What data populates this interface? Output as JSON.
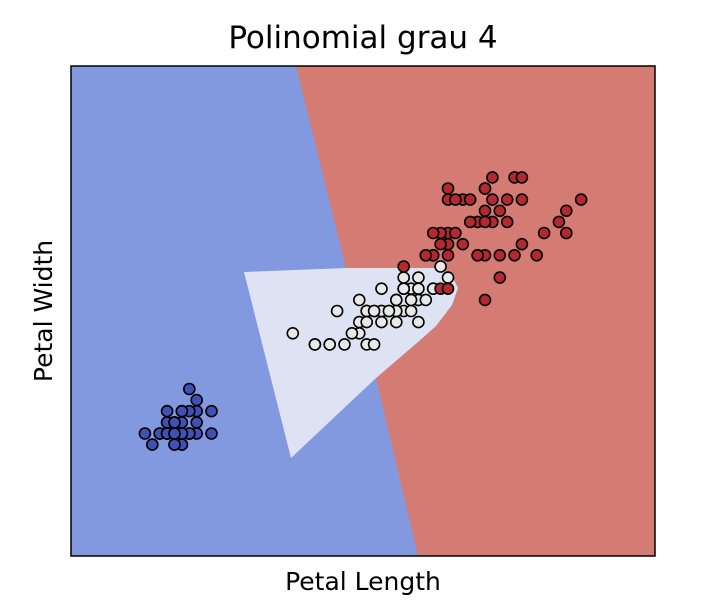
{
  "chart_data": {
    "type": "scatter",
    "title": "Polinomial grau 4",
    "xlabel": "Petal Length",
    "ylabel": "Petal Width",
    "xticks": false,
    "yticks": false,
    "xlim": [
      0.0,
      7.9
    ],
    "ylim": [
      -0.9,
      3.5
    ],
    "grid": false,
    "legend": "none",
    "decision_regions": [
      {
        "class": "0",
        "color": "#8299E0"
      },
      {
        "class": "1",
        "color": "#DDE3F2"
      },
      {
        "class": "2",
        "color": "#D47C74"
      }
    ],
    "series": [
      {
        "class": "0",
        "color": "#3F51B5",
        "points": [
          [
            1.4,
            0.2
          ],
          [
            1.4,
            0.2
          ],
          [
            1.3,
            0.2
          ],
          [
            1.5,
            0.2
          ],
          [
            1.4,
            0.2
          ],
          [
            1.7,
            0.4
          ],
          [
            1.4,
            0.3
          ],
          [
            1.5,
            0.2
          ],
          [
            1.4,
            0.2
          ],
          [
            1.5,
            0.1
          ],
          [
            1.5,
            0.2
          ],
          [
            1.6,
            0.2
          ],
          [
            1.4,
            0.1
          ],
          [
            1.1,
            0.1
          ],
          [
            1.2,
            0.2
          ],
          [
            1.5,
            0.4
          ],
          [
            1.3,
            0.4
          ],
          [
            1.4,
            0.3
          ],
          [
            1.7,
            0.3
          ],
          [
            1.5,
            0.3
          ],
          [
            1.7,
            0.2
          ],
          [
            1.5,
            0.4
          ],
          [
            1.0,
            0.2
          ],
          [
            1.7,
            0.5
          ],
          [
            1.9,
            0.2
          ],
          [
            1.6,
            0.2
          ],
          [
            1.6,
            0.4
          ],
          [
            1.5,
            0.2
          ],
          [
            1.4,
            0.2
          ],
          [
            1.6,
            0.2
          ],
          [
            1.6,
            0.2
          ],
          [
            1.5,
            0.4
          ],
          [
            1.5,
            0.1
          ],
          [
            1.4,
            0.2
          ],
          [
            1.5,
            0.2
          ],
          [
            1.2,
            0.2
          ],
          [
            1.3,
            0.2
          ],
          [
            1.4,
            0.1
          ],
          [
            1.3,
            0.2
          ],
          [
            1.5,
            0.2
          ],
          [
            1.3,
            0.3
          ],
          [
            1.3,
            0.3
          ],
          [
            1.3,
            0.2
          ],
          [
            1.6,
            0.6
          ],
          [
            1.9,
            0.4
          ],
          [
            1.4,
            0.3
          ],
          [
            1.6,
            0.2
          ],
          [
            1.4,
            0.2
          ],
          [
            1.5,
            0.2
          ],
          [
            1.4,
            0.2
          ]
        ]
      },
      {
        "class": "1",
        "color": "#E8E8E8",
        "points": [
          [
            4.7,
            1.4
          ],
          [
            4.5,
            1.5
          ],
          [
            4.9,
            1.5
          ],
          [
            4.0,
            1.3
          ],
          [
            4.6,
            1.5
          ],
          [
            4.5,
            1.3
          ],
          [
            4.7,
            1.6
          ],
          [
            3.3,
            1.0
          ],
          [
            4.6,
            1.3
          ],
          [
            3.9,
            1.4
          ],
          [
            3.5,
            1.0
          ],
          [
            4.2,
            1.5
          ],
          [
            4.0,
            1.0
          ],
          [
            4.7,
            1.4
          ],
          [
            3.6,
            1.3
          ],
          [
            4.4,
            1.4
          ],
          [
            4.5,
            1.5
          ],
          [
            4.1,
            1.0
          ],
          [
            4.5,
            1.5
          ],
          [
            3.9,
            1.1
          ],
          [
            4.8,
            1.8
          ],
          [
            4.0,
            1.3
          ],
          [
            4.9,
            1.5
          ],
          [
            4.7,
            1.2
          ],
          [
            4.3,
            1.3
          ],
          [
            4.4,
            1.4
          ],
          [
            4.8,
            1.4
          ],
          [
            5.0,
            1.7
          ],
          [
            4.5,
            1.5
          ],
          [
            3.5,
            1.0
          ],
          [
            3.8,
            1.1
          ],
          [
            3.7,
            1.0
          ],
          [
            3.9,
            1.2
          ],
          [
            5.1,
            1.6
          ],
          [
            4.5,
            1.5
          ],
          [
            4.5,
            1.6
          ],
          [
            4.7,
            1.5
          ],
          [
            4.4,
            1.3
          ],
          [
            4.1,
            1.3
          ],
          [
            4.0,
            1.3
          ],
          [
            4.4,
            1.2
          ],
          [
            4.6,
            1.4
          ],
          [
            4.0,
            1.2
          ],
          [
            3.3,
            1.0
          ],
          [
            4.2,
            1.3
          ],
          [
            4.2,
            1.2
          ],
          [
            4.2,
            1.3
          ],
          [
            4.3,
            1.3
          ],
          [
            3.0,
            1.1
          ],
          [
            4.1,
            1.3
          ]
        ]
      },
      {
        "class": "2",
        "color": "#B22A2E",
        "points": [
          [
            6.0,
            2.5
          ],
          [
            5.1,
            1.9
          ],
          [
            5.9,
            2.1
          ],
          [
            5.6,
            1.8
          ],
          [
            5.8,
            2.2
          ],
          [
            6.6,
            2.1
          ],
          [
            4.5,
            1.7
          ],
          [
            6.3,
            1.8
          ],
          [
            5.8,
            1.8
          ],
          [
            6.1,
            2.5
          ],
          [
            5.1,
            2.0
          ],
          [
            5.3,
            1.9
          ],
          [
            5.5,
            2.1
          ],
          [
            5.0,
            2.0
          ],
          [
            5.1,
            2.4
          ],
          [
            5.3,
            2.3
          ],
          [
            5.5,
            1.8
          ],
          [
            6.7,
            2.2
          ],
          [
            6.9,
            2.3
          ],
          [
            5.0,
            1.5
          ],
          [
            5.7,
            2.3
          ],
          [
            4.9,
            2.0
          ],
          [
            6.7,
            2.0
          ],
          [
            4.9,
            1.8
          ],
          [
            5.7,
            2.1
          ],
          [
            6.0,
            1.8
          ],
          [
            4.8,
            1.8
          ],
          [
            4.9,
            1.8
          ],
          [
            5.6,
            2.1
          ],
          [
            5.8,
            1.6
          ],
          [
            6.1,
            1.9
          ],
          [
            6.4,
            2.0
          ],
          [
            5.6,
            2.2
          ],
          [
            5.1,
            1.5
          ],
          [
            5.6,
            1.4
          ],
          [
            6.1,
            2.3
          ],
          [
            5.6,
            2.4
          ],
          [
            5.5,
            1.8
          ],
          [
            4.8,
            1.8
          ],
          [
            5.4,
            2.1
          ],
          [
            5.6,
            2.4
          ],
          [
            5.1,
            2.3
          ],
          [
            5.1,
            1.9
          ],
          [
            5.9,
            2.3
          ],
          [
            5.7,
            2.5
          ],
          [
            5.2,
            2.3
          ],
          [
            5.0,
            1.9
          ],
          [
            5.2,
            2.0
          ],
          [
            5.4,
            2.3
          ],
          [
            5.1,
            1.8
          ]
        ]
      }
    ]
  }
}
